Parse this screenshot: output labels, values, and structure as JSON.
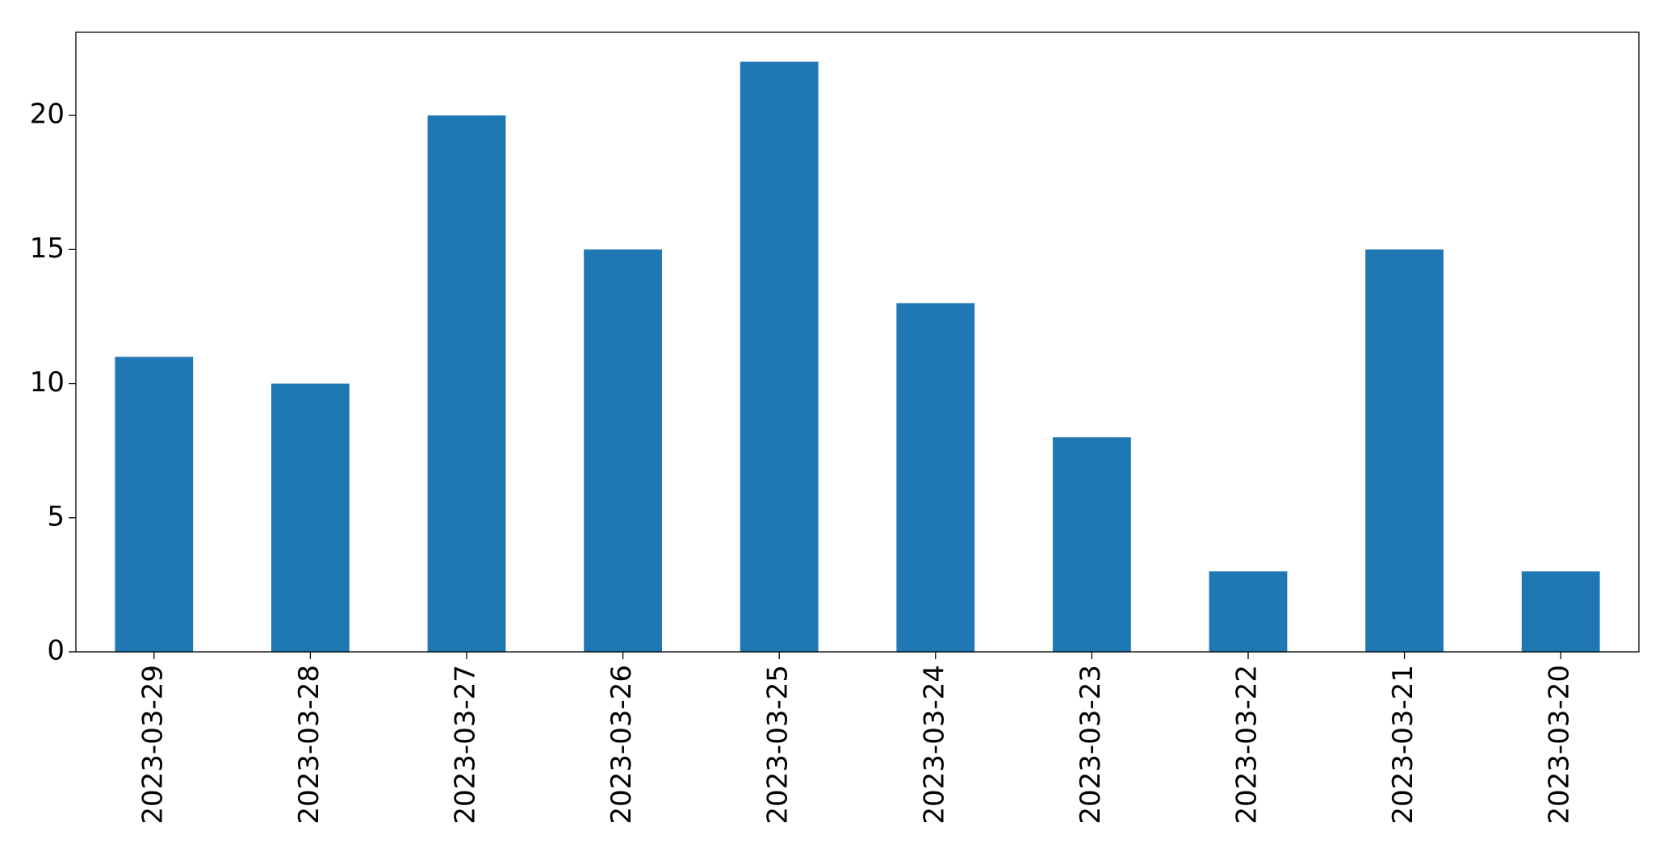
{
  "chart_data": {
    "type": "bar",
    "categories": [
      "2023-03-29",
      "2023-03-28",
      "2023-03-27",
      "2023-03-26",
      "2023-03-25",
      "2023-03-24",
      "2023-03-23",
      "2023-03-22",
      "2023-03-21",
      "2023-03-20"
    ],
    "values": [
      11,
      10,
      20,
      15,
      22,
      13,
      8,
      3,
      15,
      3
    ],
    "color": "#1f77b4",
    "ylim": [
      0,
      23.1
    ],
    "yticks": [
      0,
      5,
      10,
      15,
      20
    ],
    "grid": false
  }
}
